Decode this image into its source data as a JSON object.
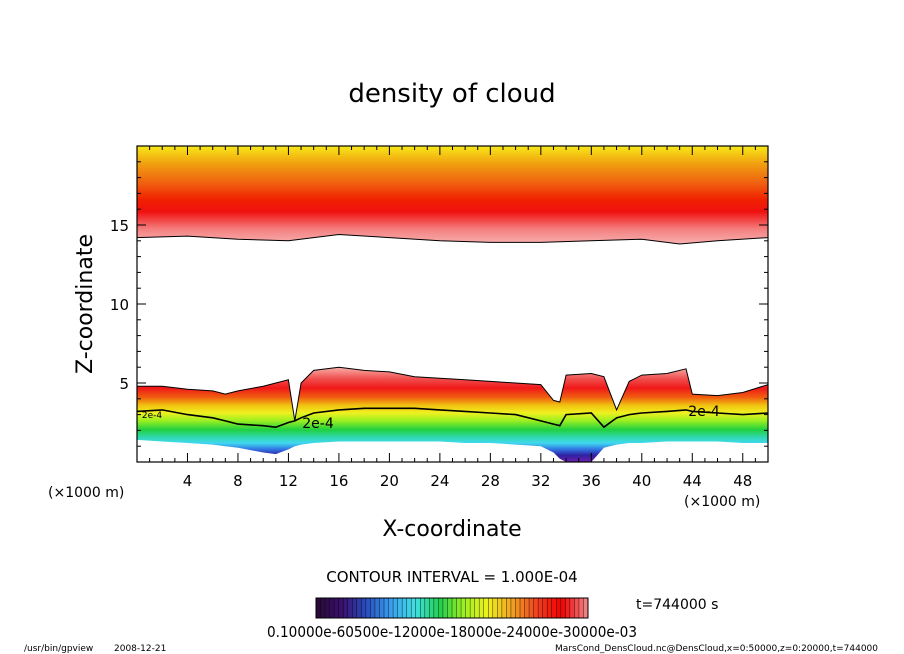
{
  "chart_data": {
    "type": "heatmap",
    "title": "density of cloud",
    "xlabel": "X-coordinate",
    "ylabel": "Z-coordinate",
    "x_unit": "(×1000 m)",
    "y_unit": "(×1000 m)",
    "xlim": [
      0,
      50
    ],
    "ylim": [
      0,
      20
    ],
    "x_ticks": [
      4,
      8,
      12,
      16,
      20,
      24,
      28,
      32,
      36,
      40,
      44,
      48
    ],
    "y_ticks": [
      5,
      10,
      15
    ],
    "contour_interval_text": "CONTOUR INTERVAL = 1.000E-04",
    "contour_labels": [
      "2e-4",
      "2e-4",
      "2e-4"
    ],
    "time_text": "t=744000 s",
    "colorbar_labels_text": "0.10000e-60500e-12000e-18000e-24000e-30000e-03",
    "colorbar_colors": [
      "#2a0a3a",
      "#3a1070",
      "#2850c0",
      "#38a0f0",
      "#40e0e0",
      "#20d050",
      "#a0f020",
      "#f0f020",
      "#f0a020",
      "#f04020",
      "#f00000",
      "#f08080"
    ],
    "upper_layer": {
      "base_km": [
        14.2,
        14.3,
        14.1,
        14.0,
        14.4,
        14.2,
        14.0,
        13.9,
        13.9,
        14.0,
        14.1,
        13.8,
        14.0,
        14.2
      ],
      "x_km": [
        0,
        4,
        8,
        12,
        16,
        20,
        24,
        28,
        32,
        36,
        40,
        43,
        46,
        50
      ],
      "peak_km": 16.2,
      "top_km": 20
    },
    "lower_layer": {
      "x_km": [
        0,
        2,
        4,
        6,
        7,
        8,
        10,
        11,
        12,
        12.5,
        13,
        14,
        16,
        18,
        20,
        22,
        24,
        26,
        28,
        30,
        32,
        33,
        33.5,
        34,
        36,
        37,
        38,
        39,
        40,
        42,
        43.5,
        44,
        46,
        48,
        50
      ],
      "top_km": [
        4.8,
        4.8,
        4.6,
        4.5,
        4.3,
        4.5,
        4.8,
        5.0,
        5.2,
        2.6,
        5.0,
        5.8,
        6.0,
        5.8,
        5.7,
        5.4,
        5.3,
        5.2,
        5.1,
        5.0,
        4.9,
        3.9,
        3.8,
        5.5,
        5.6,
        5.4,
        3.3,
        5.1,
        5.5,
        5.6,
        5.9,
        4.3,
        4.2,
        4.4,
        4.9
      ],
      "contour_2e4_km": [
        3.2,
        3.3,
        3.0,
        2.8,
        2.6,
        2.4,
        2.3,
        2.2,
        2.5,
        2.6,
        2.8,
        3.1,
        3.3,
        3.4,
        3.4,
        3.4,
        3.3,
        3.2,
        3.1,
        3.0,
        2.6,
        2.4,
        2.3,
        3.0,
        3.1,
        2.2,
        2.8,
        3.0,
        3.1,
        3.2,
        3.3,
        3.2,
        3.1,
        3.0,
        3.1
      ],
      "bottom_km": [
        1.4,
        1.3,
        1.2,
        1.1,
        1.0,
        0.9,
        0.6,
        0.5,
        0.8,
        1.0,
        1.1,
        1.2,
        1.3,
        1.3,
        1.3,
        1.3,
        1.3,
        1.2,
        1.2,
        1.1,
        1.0,
        0.6,
        0.2,
        0.0,
        0.0,
        0.9,
        1.1,
        1.2,
        1.2,
        1.3,
        1.3,
        1.3,
        1.3,
        1.2,
        1.2
      ]
    }
  },
  "footer": {
    "program": "/usr/bin/gpview",
    "date": "2008-12-21",
    "source": "MarsCond_DensCloud.nc@DensCloud,x=0:50000,z=0:20000,t=744000"
  },
  "colors": {
    "frame": "#000000",
    "background": "#ffffff"
  }
}
